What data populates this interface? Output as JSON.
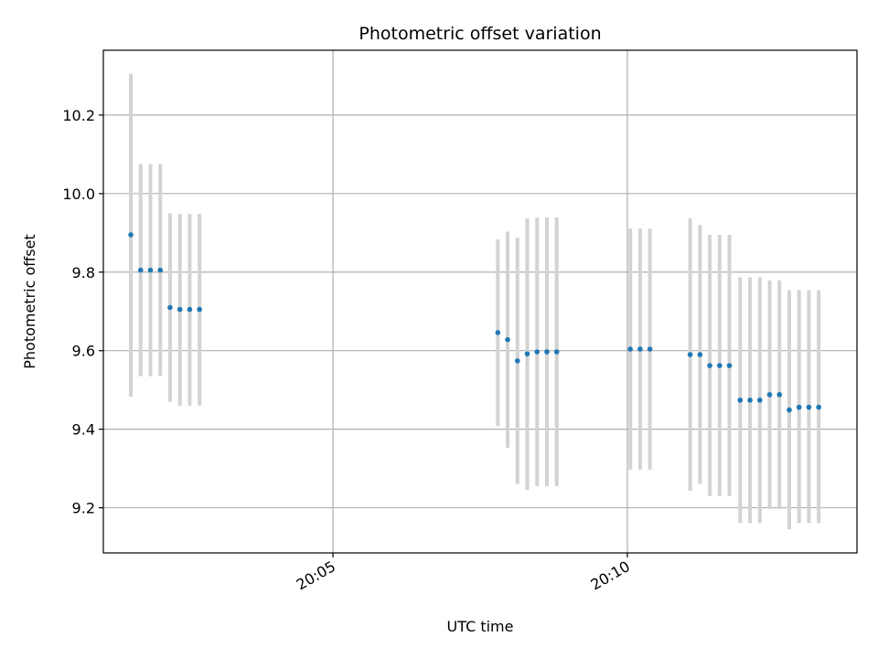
{
  "chart_data": {
    "type": "scatter",
    "title": "Photometric offset variation",
    "xlabel": "UTC time",
    "ylabel": "Photometric offset",
    "x_ticks": [
      "20:05",
      "20:10"
    ],
    "y_ticks": [
      "9.2",
      "9.4",
      "9.6",
      "9.8",
      "10.0",
      "10.2"
    ],
    "ylim": [
      9.085,
      10.365
    ],
    "xlim": [
      "20:01:06",
      "20:13:54"
    ],
    "grid": true,
    "point_color": "#1f77b4",
    "errorbar_color": "#d3d3d3",
    "series": [
      {
        "points": [
          {
            "x": "20:01:34",
            "y": 9.895,
            "ylo": 9.483,
            "yhi": 10.305
          },
          {
            "x": "20:01:44",
            "y": 9.805,
            "ylo": 9.535,
            "yhi": 10.075
          },
          {
            "x": "20:01:54",
            "y": 9.805,
            "ylo": 9.535,
            "yhi": 10.075
          },
          {
            "x": "20:02:04",
            "y": 9.805,
            "ylo": 9.535,
            "yhi": 10.075
          },
          {
            "x": "20:02:14",
            "y": 9.71,
            "ylo": 9.47,
            "yhi": 9.95
          },
          {
            "x": "20:02:24",
            "y": 9.705,
            "ylo": 9.46,
            "yhi": 9.948
          },
          {
            "x": "20:02:34",
            "y": 9.705,
            "ylo": 9.46,
            "yhi": 9.948
          },
          {
            "x": "20:02:44",
            "y": 9.705,
            "ylo": 9.46,
            "yhi": 9.948
          },
          {
            "x": "20:07:48",
            "y": 9.646,
            "ylo": 9.408,
            "yhi": 9.883
          },
          {
            "x": "20:07:58",
            "y": 9.628,
            "ylo": 9.353,
            "yhi": 9.903
          },
          {
            "x": "20:08:08",
            "y": 9.574,
            "ylo": 9.26,
            "yhi": 9.888
          },
          {
            "x": "20:08:18",
            "y": 9.592,
            "ylo": 9.245,
            "yhi": 9.937
          },
          {
            "x": "20:08:28",
            "y": 9.597,
            "ylo": 9.255,
            "yhi": 9.939
          },
          {
            "x": "20:08:38",
            "y": 9.597,
            "ylo": 9.255,
            "yhi": 9.939
          },
          {
            "x": "20:08:48",
            "y": 9.597,
            "ylo": 9.255,
            "yhi": 9.939
          },
          {
            "x": "20:10:03",
            "y": 9.604,
            "ylo": 9.297,
            "yhi": 9.911
          },
          {
            "x": "20:10:13",
            "y": 9.604,
            "ylo": 9.297,
            "yhi": 9.911
          },
          {
            "x": "20:10:23",
            "y": 9.604,
            "ylo": 9.297,
            "yhi": 9.911
          },
          {
            "x": "20:11:04",
            "y": 9.59,
            "ylo": 9.243,
            "yhi": 9.937
          },
          {
            "x": "20:11:14",
            "y": 9.59,
            "ylo": 9.261,
            "yhi": 9.92
          },
          {
            "x": "20:11:24",
            "y": 9.562,
            "ylo": 9.23,
            "yhi": 9.895
          },
          {
            "x": "20:11:34",
            "y": 9.562,
            "ylo": 9.23,
            "yhi": 9.895
          },
          {
            "x": "20:11:44",
            "y": 9.562,
            "ylo": 9.23,
            "yhi": 9.895
          },
          {
            "x": "20:11:55",
            "y": 9.474,
            "ylo": 9.161,
            "yhi": 9.787
          },
          {
            "x": "20:12:05",
            "y": 9.474,
            "ylo": 9.161,
            "yhi": 9.787
          },
          {
            "x": "20:12:15",
            "y": 9.474,
            "ylo": 9.161,
            "yhi": 9.787
          },
          {
            "x": "20:12:25",
            "y": 9.488,
            "ylo": 9.197,
            "yhi": 9.779
          },
          {
            "x": "20:12:35",
            "y": 9.488,
            "ylo": 9.197,
            "yhi": 9.779
          },
          {
            "x": "20:12:45",
            "y": 9.449,
            "ylo": 9.145,
            "yhi": 9.754
          },
          {
            "x": "20:12:55",
            "y": 9.456,
            "ylo": 9.161,
            "yhi": 9.754
          },
          {
            "x": "20:13:05",
            "y": 9.456,
            "ylo": 9.161,
            "yhi": 9.754
          },
          {
            "x": "20:13:15",
            "y": 9.456,
            "ylo": 9.161,
            "yhi": 9.754
          }
        ]
      }
    ]
  }
}
